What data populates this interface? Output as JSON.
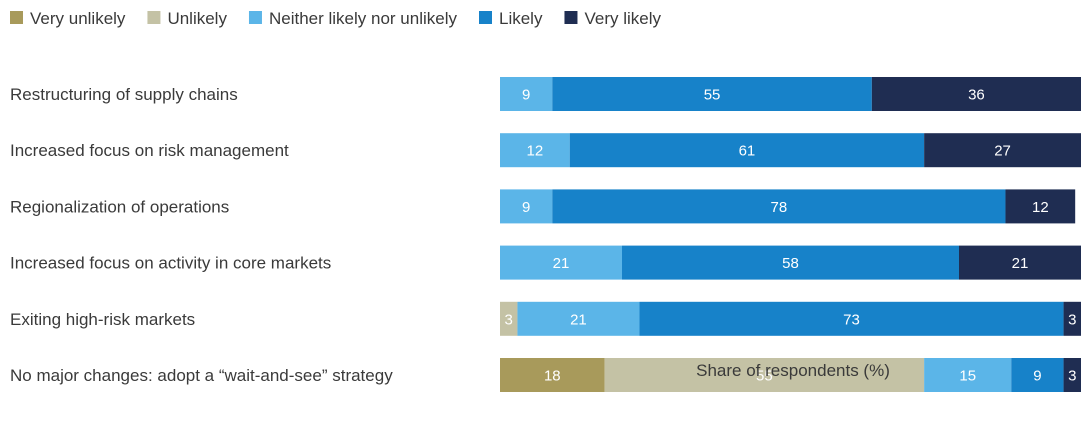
{
  "chart_data": {
    "type": "bar",
    "orientation": "horizontal",
    "stacked": true,
    "xlabel": "Share of respondents (%)",
    "xlim": [
      0,
      100
    ],
    "legend_position": "top-left",
    "grid": false,
    "categories": [
      "Restructuring of supply chains",
      "Increased focus on risk management",
      "Regionalization of operations",
      "Increased focus on activity in core markets",
      "Exiting high-risk markets",
      "No major changes: adopt a “wait-and-see” strategy"
    ],
    "series": [
      {
        "name": "Very unlikely",
        "color": "#a89a5b",
        "values": [
          0,
          0,
          0,
          0,
          0,
          18
        ]
      },
      {
        "name": "Unlikely",
        "color": "#c4c2a5",
        "values": [
          0,
          0,
          0,
          0,
          3,
          55
        ]
      },
      {
        "name": "Neither likely nor unlikely",
        "color": "#5bb5e8",
        "values": [
          9,
          12,
          9,
          21,
          21,
          15
        ]
      },
      {
        "name": "Likely",
        "color": "#1782c9",
        "values": [
          55,
          61,
          78,
          58,
          73,
          9
        ]
      },
      {
        "name": "Very likely",
        "color": "#1f2d52",
        "values": [
          36,
          27,
          12,
          21,
          3,
          3
        ]
      }
    ]
  }
}
